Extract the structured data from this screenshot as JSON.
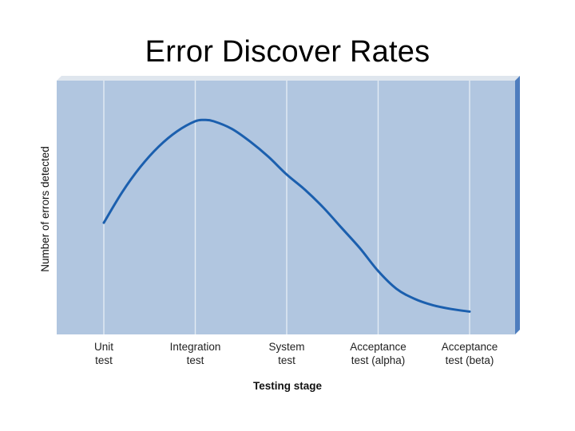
{
  "slide": {
    "title": "Error Discover Rates"
  },
  "chart_data": {
    "type": "line",
    "title": "",
    "xlabel": "Testing stage",
    "ylabel": "Number of errors detected",
    "categories": [
      [
        "Unit",
        "test"
      ],
      [
        "Integration",
        "test"
      ],
      [
        "System",
        "test"
      ],
      [
        "Acceptance",
        "test (alpha)"
      ],
      [
        "Acceptance",
        "test (beta)"
      ]
    ],
    "ylim": [
      0,
      100
    ],
    "grid": "vertical",
    "legend": "none",
    "colors": {
      "plot_background": "#b1c6e0",
      "plot_frame_light": "#dfe6ee",
      "plot_frame_dark": "#4e7dbe",
      "gridline": "#e3ebf4",
      "line": "#1b5fae"
    },
    "series": [
      {
        "points": [
          [
            0.0,
            44
          ],
          [
            0.2,
            56
          ],
          [
            0.4,
            66
          ],
          [
            0.6,
            74
          ],
          [
            0.8,
            80
          ],
          [
            1.0,
            84
          ],
          [
            1.1,
            84.5
          ],
          [
            1.2,
            84
          ],
          [
            1.4,
            81
          ],
          [
            1.6,
            76
          ],
          [
            1.8,
            70
          ],
          [
            2.0,
            63
          ],
          [
            2.2,
            57
          ],
          [
            2.4,
            50
          ],
          [
            2.6,
            42
          ],
          [
            2.8,
            34
          ],
          [
            3.0,
            25
          ],
          [
            3.2,
            18
          ],
          [
            3.4,
            14
          ],
          [
            3.6,
            11.5
          ],
          [
            3.8,
            10
          ],
          [
            4.0,
            9
          ]
        ]
      }
    ]
  }
}
